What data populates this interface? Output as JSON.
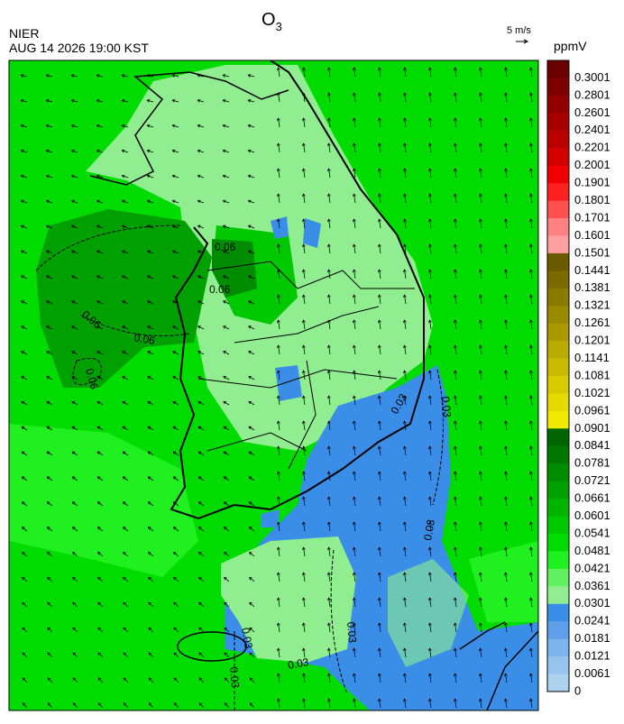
{
  "header": {
    "title": {
      "text": "O",
      "subscript": "3"
    },
    "agency": "NIER",
    "timestamp": "AUG 14 2026 19:00 KST",
    "wind_scale": "5 m/s"
  },
  "colorbar": {
    "unit": "ppmV",
    "labels": [
      0.3001,
      0.2801,
      0.2601,
      0.2401,
      0.2201,
      0.2001,
      0.1901,
      0.1801,
      0.1701,
      0.1601,
      0.1501,
      0.1441,
      0.1381,
      0.1321,
      0.1261,
      0.1201,
      0.1141,
      0.1081,
      0.1021,
      0.0961,
      0.0901,
      0.0841,
      0.0781,
      0.0721,
      0.0661,
      0.0601,
      0.0541,
      0.0481,
      0.0421,
      0.0361,
      0.0301,
      0.0241,
      0.0181,
      0.0121,
      0.0061,
      0
    ],
    "colors": [
      "#6b0000",
      "#7f0000",
      "#930000",
      "#a70000",
      "#bb0000",
      "#d40000",
      "#f00000",
      "#ff2020",
      "#ff5050",
      "#ff8080",
      "#ffa0a0",
      "#6b5a00",
      "#7a6a00",
      "#8a7a00",
      "#9a8a00",
      "#aa9a00",
      "#baab00",
      "#cabb00",
      "#d8cb00",
      "#e6da00",
      "#f0ea00",
      "#006400",
      "#007800",
      "#008c00",
      "#00a000",
      "#00b400",
      "#00c800",
      "#00dc00",
      "#20f020",
      "#60f060",
      "#90ee90",
      "#3a8ee8",
      "#5ea0ec",
      "#7cb4ee",
      "#96c4ee",
      "#acd2ee"
    ]
  },
  "contour_labels": [
    {
      "text": "0.06"
    },
    {
      "text": "0.06"
    },
    {
      "text": "0.06"
    },
    {
      "text": "0.06"
    },
    {
      "text": "0.06"
    },
    {
      "text": "0.03"
    },
    {
      "text": "0.03"
    },
    {
      "text": "0.03"
    },
    {
      "text": "0.03"
    },
    {
      "text": "0.03"
    },
    {
      "text": "0.03"
    },
    {
      "text": "0.03"
    }
  ]
}
